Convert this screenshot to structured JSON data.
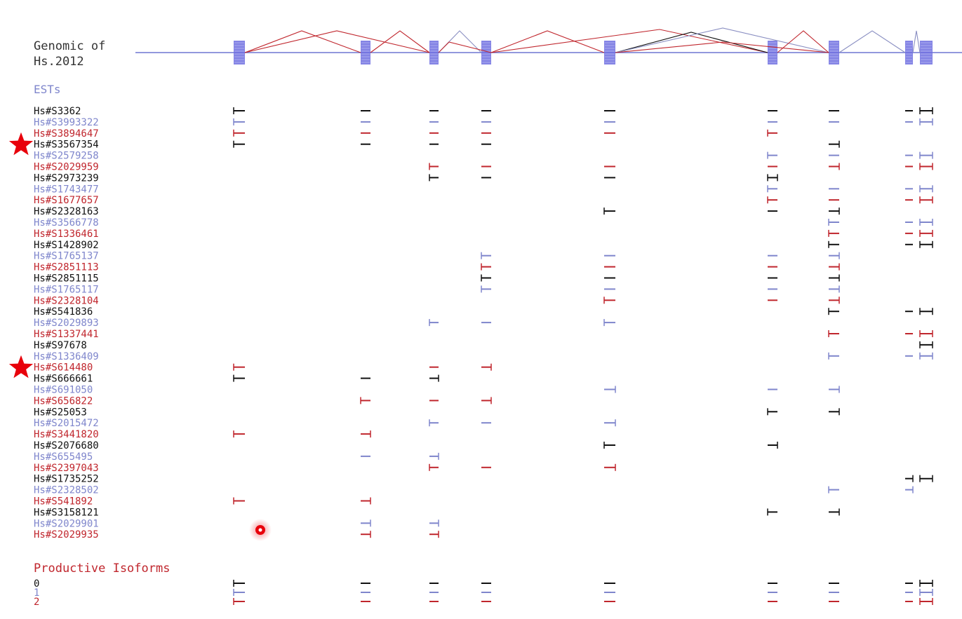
{
  "genomic": {
    "title_line1": "Genomic of",
    "title_line2": "Hs.2012",
    "line_color": "#6f76d2",
    "exon_color": "#6e6ee0"
  },
  "ests_heading": "ESTs",
  "isoforms_heading": "Productive Isoforms",
  "colors": {
    "black": "#111111",
    "blue": "#7f86cc",
    "red": "#c0262d",
    "star": "#e8000b"
  },
  "ests": [
    {
      "id": "Hs#S3362",
      "color": "black"
    },
    {
      "id": "Hs#S3993322",
      "color": "blue"
    },
    {
      "id": "Hs#S3894647",
      "color": "red"
    },
    {
      "id": "Hs#S3567354",
      "color": "black",
      "starred": true
    },
    {
      "id": "Hs#S2579258",
      "color": "blue"
    },
    {
      "id": "Hs#S2029959",
      "color": "red"
    },
    {
      "id": "Hs#S2973239",
      "color": "black"
    },
    {
      "id": "Hs#S1743477",
      "color": "blue"
    },
    {
      "id": "Hs#S1677657",
      "color": "red"
    },
    {
      "id": "Hs#S2328163",
      "color": "black"
    },
    {
      "id": "Hs#S3566778",
      "color": "blue"
    },
    {
      "id": "Hs#S1336461",
      "color": "red"
    },
    {
      "id": "Hs#S1428902",
      "color": "black"
    },
    {
      "id": "Hs#S1765137",
      "color": "blue"
    },
    {
      "id": "Hs#S2851113",
      "color": "red"
    },
    {
      "id": "Hs#S2851115",
      "color": "black"
    },
    {
      "id": "Hs#S1765117",
      "color": "blue"
    },
    {
      "id": "Hs#S2328104",
      "color": "red"
    },
    {
      "id": "Hs#S541836",
      "color": "black"
    },
    {
      "id": "Hs#S2029893",
      "color": "blue"
    },
    {
      "id": "Hs#S1337441",
      "color": "red"
    },
    {
      "id": "Hs#S97678",
      "color": "black"
    },
    {
      "id": "Hs#S1336409",
      "color": "blue"
    },
    {
      "id": "Hs#S614480",
      "color": "red",
      "starred": true
    },
    {
      "id": "Hs#S666661",
      "color": "black"
    },
    {
      "id": "Hs#S691050",
      "color": "blue"
    },
    {
      "id": "Hs#S656822",
      "color": "red"
    },
    {
      "id": "Hs#S25053",
      "color": "black"
    },
    {
      "id": "Hs#S2015472",
      "color": "blue"
    },
    {
      "id": "Hs#S3441820",
      "color": "red"
    },
    {
      "id": "Hs#S2076680",
      "color": "black"
    },
    {
      "id": "Hs#S655495",
      "color": "blue"
    },
    {
      "id": "Hs#S2397043",
      "color": "red"
    },
    {
      "id": "Hs#S1735252",
      "color": "black"
    },
    {
      "id": "Hs#S2328502",
      "color": "blue"
    },
    {
      "id": "Hs#S541892",
      "color": "red"
    },
    {
      "id": "Hs#S3158121",
      "color": "black"
    },
    {
      "id": "Hs#S2029901",
      "color": "blue"
    },
    {
      "id": "Hs#S2029935",
      "color": "red"
    }
  ],
  "isoforms": [
    {
      "id": "0",
      "color": "black"
    },
    {
      "id": "1",
      "color": "blue"
    },
    {
      "id": "2",
      "color": "red"
    }
  ]
}
